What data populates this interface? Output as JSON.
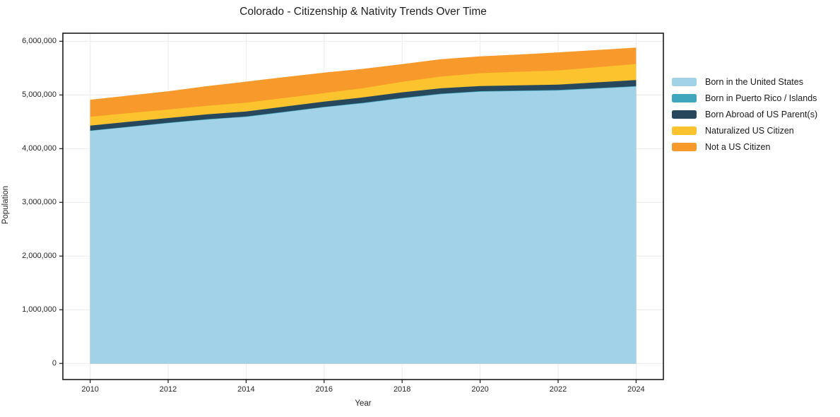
{
  "chart": {
    "title": "Colorado - Citizenship & Nativity Trends Over Time",
    "xlabel": "Year",
    "ylabel": "Population"
  },
  "chart_data": {
    "type": "area",
    "stacked": true,
    "title": "Colorado - Citizenship & Nativity Trends Over Time",
    "xlabel": "Year",
    "ylabel": "Population",
    "grid": true,
    "legend_position": "right",
    "x": [
      2010,
      2011,
      2012,
      2013,
      2014,
      2015,
      2016,
      2017,
      2018,
      2019,
      2020,
      2021,
      2022,
      2023,
      2024
    ],
    "series": [
      {
        "name": "Born in the United States",
        "color": "#A2D2E8",
        "values": [
          4330000,
          4402000,
          4475000,
          4540000,
          4592000,
          4680000,
          4770000,
          4845000,
          4935000,
          5015000,
          5060000,
          5072000,
          5082000,
          5118000,
          5155000
        ]
      },
      {
        "name": "Born in Puerto Rico / Islands",
        "color": "#3FA6BE",
        "values": [
          8000,
          8000,
          8000,
          9000,
          9000,
          9000,
          9000,
          10000,
          10000,
          10000,
          10000,
          10000,
          11000,
          11000,
          11000
        ]
      },
      {
        "name": "Born Abroad of US Parent(s)",
        "color": "#27485C",
        "values": [
          90000,
          90000,
          88000,
          90000,
          92000,
          95000,
          98000,
          100000,
          105000,
          100000,
          95000,
          98000,
          100000,
          106000,
          112000
        ]
      },
      {
        "name": "Naturalized US Citizen",
        "color": "#FBC32D",
        "values": [
          165000,
          162000,
          158000,
          160000,
          165000,
          162000,
          158000,
          172000,
          195000,
          220000,
          240000,
          252000,
          265000,
          282000,
          300000
        ]
      },
      {
        "name": "Not a US Citizen",
        "color": "#F8992B",
        "values": [
          318000,
          328000,
          340000,
          365000,
          390000,
          388000,
          380000,
          360000,
          330000,
          320000,
          315000,
          322000,
          335000,
          320000,
          305000
        ]
      }
    ],
    "xticks": [
      2010,
      2012,
      2014,
      2016,
      2018,
      2020,
      2022,
      2024
    ],
    "xtick_labels": [
      "2010",
      "2012",
      "2014",
      "2016",
      "2018",
      "2020",
      "2022",
      "2024"
    ],
    "yticks": [
      0,
      1000000,
      2000000,
      3000000,
      4000000,
      5000000,
      6000000
    ],
    "ytick_labels": [
      "0",
      "1,000,000",
      "2,000,000",
      "3,000,000",
      "4,000,000",
      "5,000,000",
      "6,000,000"
    ],
    "xlim": [
      2009.3,
      2024.7
    ],
    "ylim": [
      -300000,
      6150000
    ]
  },
  "colors": {
    "grid": "#ececec",
    "spine": "#1a1a1a",
    "tick": "#1a1a1a",
    "text": "#262626"
  }
}
